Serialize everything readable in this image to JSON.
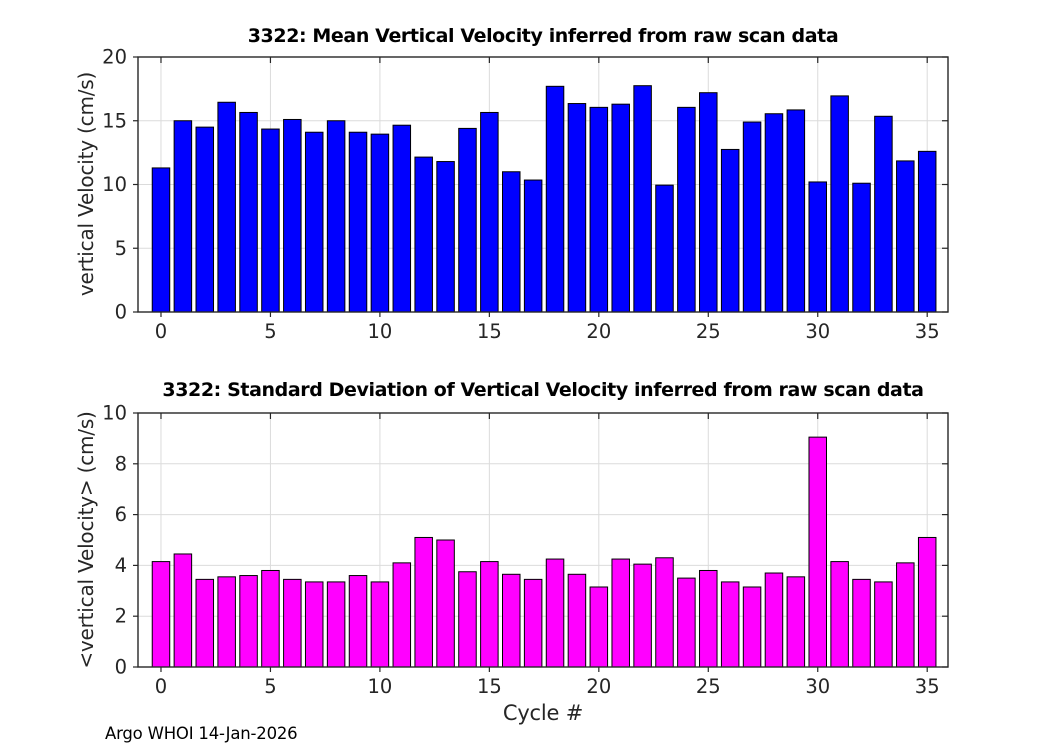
{
  "figure": {
    "footer": "Argo WHOI 14-Jan-2026",
    "background_color": "#ffffff",
    "axis_color": "#262626",
    "grid_color": "#dbdbdb",
    "title_color": "#000000"
  },
  "chart_data": [
    {
      "type": "bar",
      "title": "3322: Mean Vertical Velocity inferred from raw scan data",
      "xlabel": "",
      "ylabel": "vertical Velocity (cm/s)",
      "bar_color": "#0000ff",
      "bar_edge_color": "#000000",
      "grid": true,
      "legend": null,
      "ylim": [
        0,
        20
      ],
      "yticks": [
        0,
        5,
        10,
        15,
        20
      ],
      "xlim": [
        -1.05,
        35.95
      ],
      "xticks": [
        0,
        5,
        10,
        15,
        20,
        25,
        30,
        35
      ],
      "x": [
        0,
        1,
        2,
        3,
        4,
        5,
        6,
        7,
        8,
        9,
        10,
        11,
        12,
        13,
        14,
        15,
        16,
        17,
        18,
        19,
        20,
        21,
        22,
        23,
        24,
        25,
        26,
        27,
        28,
        29,
        30,
        31,
        32,
        33,
        34,
        35
      ],
      "values": [
        11.3,
        15.0,
        14.5,
        16.45,
        15.65,
        14.35,
        15.1,
        14.1,
        15.0,
        14.1,
        13.95,
        14.65,
        12.15,
        11.8,
        14.4,
        15.65,
        11.0,
        10.35,
        17.7,
        16.35,
        16.05,
        16.3,
        17.75,
        9.95,
        16.05,
        17.2,
        12.75,
        14.9,
        15.55,
        15.85,
        10.2,
        16.95,
        10.1,
        15.35,
        11.85,
        12.6
      ]
    },
    {
      "type": "bar",
      "title": "3322: Standard Deviation of Vertical Velocity inferred from raw scan data",
      "xlabel": "Cycle #",
      "ylabel": "<vertical Velocity> (cm/s)",
      "bar_color": "#ff00ff",
      "bar_edge_color": "#000000",
      "grid": true,
      "legend": null,
      "ylim": [
        0,
        10
      ],
      "yticks": [
        0,
        2,
        4,
        6,
        8,
        10
      ],
      "xlim": [
        -1.05,
        35.95
      ],
      "xticks": [
        0,
        5,
        10,
        15,
        20,
        25,
        30,
        35
      ],
      "x": [
        0,
        1,
        2,
        3,
        4,
        5,
        6,
        7,
        8,
        9,
        10,
        11,
        12,
        13,
        14,
        15,
        16,
        17,
        18,
        19,
        20,
        21,
        22,
        23,
        24,
        25,
        26,
        27,
        28,
        29,
        30,
        31,
        32,
        33,
        34,
        35
      ],
      "values": [
        4.15,
        4.45,
        3.45,
        3.55,
        3.6,
        3.8,
        3.45,
        3.35,
        3.35,
        3.6,
        3.35,
        4.1,
        5.1,
        5.0,
        3.75,
        4.15,
        3.65,
        3.45,
        4.25,
        3.65,
        3.15,
        4.25,
        4.05,
        4.3,
        3.5,
        3.8,
        3.35,
        3.15,
        3.7,
        3.55,
        9.05,
        4.15,
        3.45,
        3.35,
        4.1,
        5.1
      ]
    }
  ]
}
